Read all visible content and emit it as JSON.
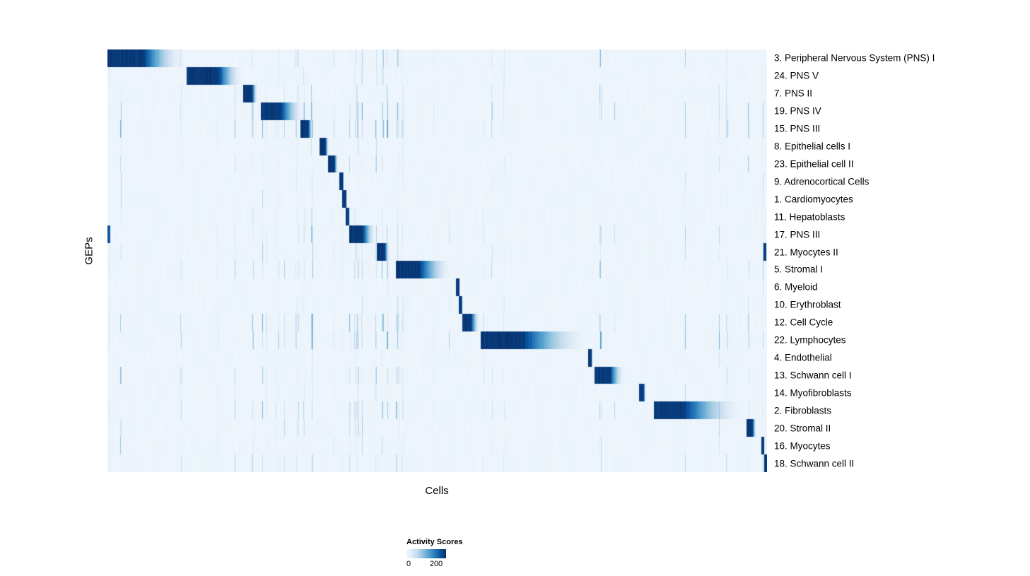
{
  "chart_data": {
    "type": "heatmap",
    "title": "",
    "xlabel": "Cells",
    "ylabel": "GEPs",
    "legend": {
      "title": "Activity Scores",
      "min": 0,
      "max": 200
    },
    "colormap": [
      "#eff6fc",
      "#deebf7",
      "#c6dbef",
      "#9ecae1",
      "#6baed6",
      "#4292c6",
      "#2171b5",
      "#08519c",
      "#08306b"
    ],
    "value_range": [
      0,
      200
    ],
    "n_cell_columns": 933,
    "grid": false,
    "legend_position": "bottom",
    "rows": [
      {
        "label": "3. Peripheral Nervous System (PNS) I",
        "block_start": 0.0,
        "block_end": 0.12,
        "plateau": 0.45,
        "noise": 0.5
      },
      {
        "label": "24. PNS V",
        "block_start": 0.12,
        "block_end": 0.207,
        "plateau": 0.55,
        "noise": 0.4
      },
      {
        "label": "7. PNS II",
        "block_start": 0.205,
        "block_end": 0.228,
        "plateau": 0.6,
        "noise": 0.35
      },
      {
        "label": "19. PNS IV",
        "block_start": 0.232,
        "block_end": 0.3,
        "plateau": 0.45,
        "noise": 0.7
      },
      {
        "label": "15. PNS III",
        "block_start": 0.292,
        "block_end": 0.312,
        "plateau": 0.6,
        "noise": 0.8
      },
      {
        "label": "8. Epithelial cells I",
        "block_start": 0.321,
        "block_end": 0.336,
        "plateau": 0.6,
        "noise": 0.15
      },
      {
        "label": "23. Epithelial cell II",
        "block_start": 0.334,
        "block_end": 0.35,
        "plateau": 0.6,
        "noise": 0.35
      },
      {
        "label": "9. Adrenocortical Cells",
        "block_start": 0.351,
        "block_end": 0.358,
        "plateau": 0.8,
        "noise": 0.15
      },
      {
        "label": "1. Cardiomyocytes",
        "block_start": 0.355,
        "block_end": 0.363,
        "plateau": 0.8,
        "noise": 0.2
      },
      {
        "label": "11. Hepatoblasts",
        "block_start": 0.361,
        "block_end": 0.367,
        "plateau": 0.8,
        "noise": 0.15
      },
      {
        "label": "17. PNS III",
        "block_start": 0.366,
        "block_end": 0.408,
        "plateau": 0.5,
        "noise": 0.45,
        "marks": [
          {
            "pos": 0.0,
            "w": 0.004,
            "v": 0.85
          }
        ]
      },
      {
        "label": "21. Myocytes II",
        "block_start": 0.408,
        "block_end": 0.428,
        "plateau": 0.6,
        "noise": 0.4,
        "marks": [
          {
            "pos": 0.994,
            "w": 0.004,
            "v": 0.95
          }
        ]
      },
      {
        "label": "5. Stromal I",
        "block_start": 0.437,
        "block_end": 0.525,
        "plateau": 0.4,
        "noise": 0.55
      },
      {
        "label": "6. Myeloid",
        "block_start": 0.528,
        "block_end": 0.534,
        "plateau": 0.8,
        "noise": 0.1
      },
      {
        "label": "10. Erythroblast",
        "block_start": 0.532,
        "block_end": 0.538,
        "plateau": 0.8,
        "noise": 0.2
      },
      {
        "label": "12. Cell Cycle",
        "block_start": 0.537,
        "block_end": 0.565,
        "plateau": 0.5,
        "noise": 0.75
      },
      {
        "label": "22. Lymphocytes",
        "block_start": 0.565,
        "block_end": 0.735,
        "plateau": 0.38,
        "noise": 0.8
      },
      {
        "label": "4. Endothelial",
        "block_start": 0.728,
        "block_end": 0.735,
        "plateau": 0.8,
        "noise": 0.1
      },
      {
        "label": "13. Schwann cell I",
        "block_start": 0.738,
        "block_end": 0.785,
        "plateau": 0.5,
        "noise": 0.45
      },
      {
        "label": "14. Myofibroblasts",
        "block_start": 0.805,
        "block_end": 0.816,
        "plateau": 0.7,
        "noise": 0.25
      },
      {
        "label": "2. Fibroblasts",
        "block_start": 0.828,
        "block_end": 0.97,
        "plateau": 0.32,
        "noise": 0.6
      },
      {
        "label": "20. Stromal II",
        "block_start": 0.968,
        "block_end": 0.984,
        "plateau": 0.6,
        "noise": 0.45
      },
      {
        "label": "16. Myocytes",
        "block_start": 0.991,
        "block_end": 0.996,
        "plateau": 0.8,
        "noise": 0.3
      },
      {
        "label": "18. Schwann cell II",
        "block_start": 0.995,
        "block_end": 1.0,
        "plateau": 0.8,
        "noise": 0.5
      }
    ]
  }
}
